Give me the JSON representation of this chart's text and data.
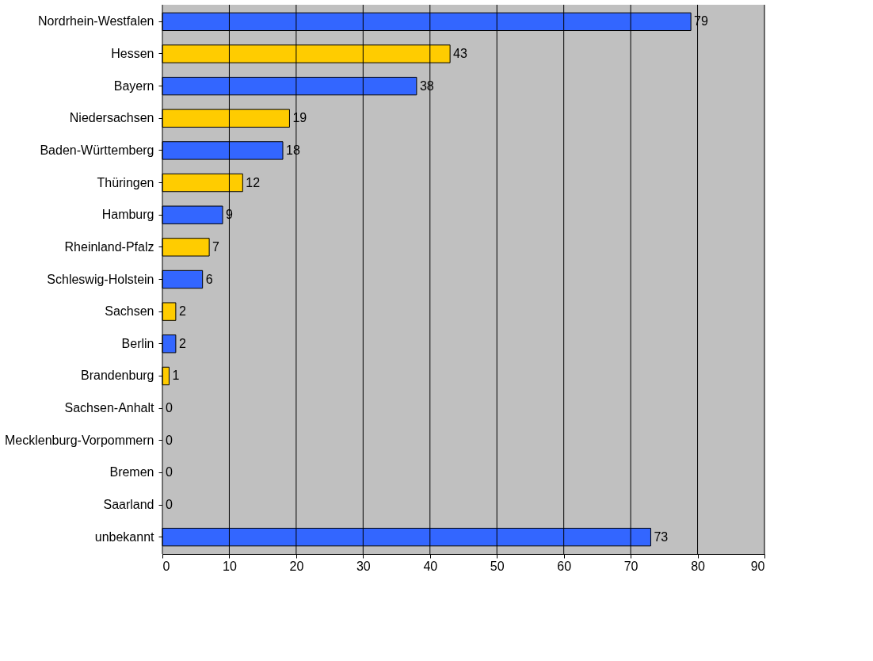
{
  "chart_data": {
    "type": "bar",
    "orientation": "horizontal",
    "categories": [
      "Nordrhein-Westfalen",
      "Hessen",
      "Bayern",
      "Niedersachsen",
      "Baden-Württemberg",
      "Thüringen",
      "Hamburg",
      "Rheinland-Pfalz",
      "Schleswig-Holstein",
      "Sachsen",
      "Berlin",
      "Brandenburg",
      "Sachsen-Anhalt",
      "Mecklenburg-Vorpommern",
      "Bremen",
      "Saarland",
      "unbekannt"
    ],
    "values": [
      79,
      43,
      38,
      19,
      18,
      12,
      9,
      7,
      6,
      2,
      2,
      1,
      0,
      0,
      0,
      0,
      73
    ],
    "colors": [
      "#3366ff",
      "#ffcc00",
      "#3366ff",
      "#ffcc00",
      "#3366ff",
      "#ffcc00",
      "#3366ff",
      "#ffcc00",
      "#3366ff",
      "#ffcc00",
      "#3366ff",
      "#ffcc00",
      "#3366ff",
      "#ffcc00",
      "#3366ff",
      "#ffcc00",
      "#3366ff"
    ],
    "xlim": [
      0,
      90
    ],
    "xticks": [
      0,
      10,
      20,
      30,
      40,
      50,
      60,
      70,
      80,
      90
    ],
    "grid": "x",
    "data_labels": true
  }
}
